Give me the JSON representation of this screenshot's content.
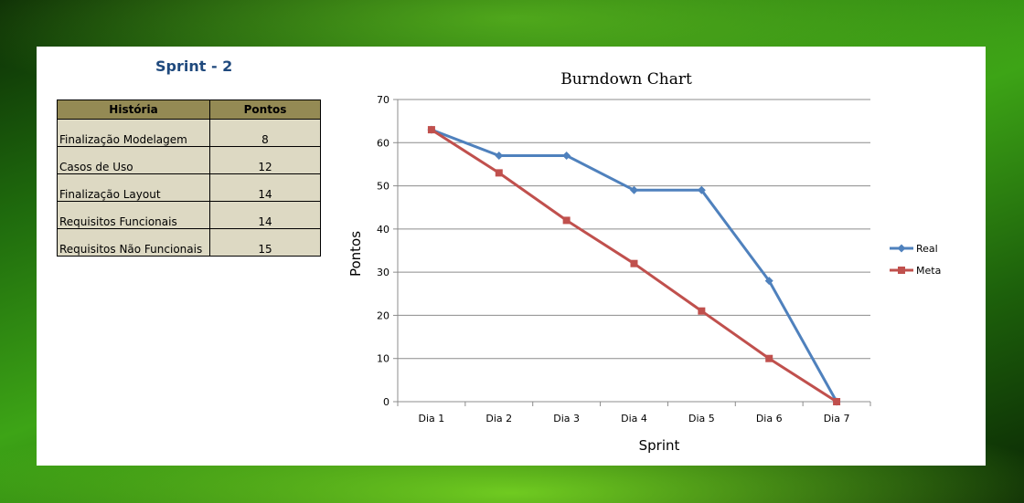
{
  "sprint_title": "Sprint - 2",
  "table": {
    "headers": [
      "História",
      "Pontos"
    ],
    "rows": [
      {
        "historia": "Finalização Modelagem",
        "pontos": "8"
      },
      {
        "historia": "Casos de Uso",
        "pontos": "12"
      },
      {
        "historia": "Finalização Layout",
        "pontos": "14"
      },
      {
        "historia": "Requisitos Funcionais",
        "pontos": "14"
      },
      {
        "historia": "Requisitos Não Funcionais",
        "pontos": "15"
      }
    ]
  },
  "colors": {
    "real": "#4f81bd",
    "meta": "#c0504d",
    "header_bg": "#948a54",
    "cell_bg": "#ddd9c3",
    "title": "#1f497d"
  },
  "chart_data": {
    "type": "line",
    "title": "Burndown Chart",
    "xlabel": "Sprint",
    "ylabel": "Pontos",
    "categories": [
      "Dia 1",
      "Dia 2",
      "Dia 3",
      "Dia 4",
      "Dia 5",
      "Dia 6",
      "Dia 7"
    ],
    "yticks": [
      "0",
      "10",
      "20",
      "30",
      "40",
      "50",
      "60",
      "70"
    ],
    "ylim": [
      0,
      70
    ],
    "grid": true,
    "legend": "right",
    "series": [
      {
        "name": "Real",
        "marker": "diamond",
        "values": [
          63,
          57,
          57,
          49,
          49,
          28,
          0
        ]
      },
      {
        "name": "Meta",
        "marker": "square",
        "values": [
          63,
          53,
          42,
          32,
          21,
          10,
          0
        ]
      }
    ]
  }
}
